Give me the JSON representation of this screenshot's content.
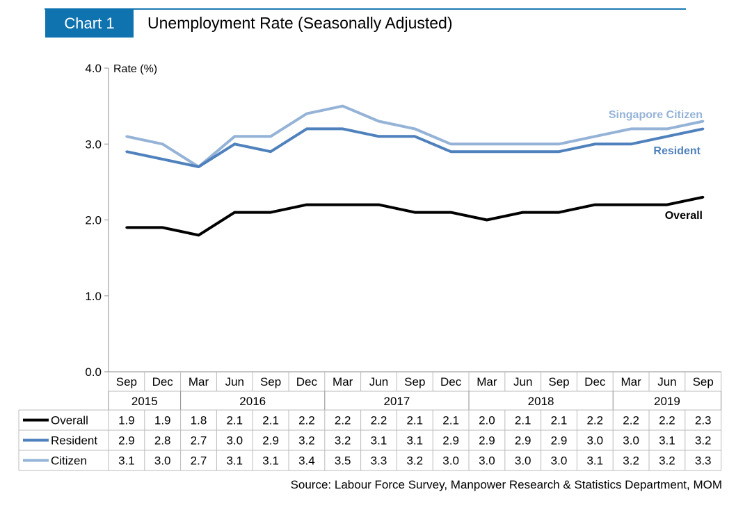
{
  "header": {
    "badge": "Chart 1",
    "title": "Unemployment Rate (Seasonally Adjusted)"
  },
  "source": "Source: Labour Force Survey, Manpower Research & Statistics Department, MOM",
  "colors": {
    "overall": "#000000",
    "resident": "#4f81bd",
    "citizen": "#95b3d7",
    "accent": "#0f73b0"
  },
  "chart_data": {
    "type": "line",
    "ylabel": "Rate (%)",
    "ylim": [
      0,
      4
    ],
    "yticks": [
      "0.0",
      "1.0",
      "2.0",
      "3.0",
      "4.0"
    ],
    "grid": false,
    "categories": [
      "Sep",
      "Dec",
      "Mar",
      "Jun",
      "Sep",
      "Dec",
      "Mar",
      "Jun",
      "Sep",
      "Dec",
      "Mar",
      "Jun",
      "Sep",
      "Dec",
      "Mar",
      "Jun",
      "Sep"
    ],
    "years": [
      {
        "label": "2015",
        "span": 2
      },
      {
        "label": "2016",
        "span": 4
      },
      {
        "label": "2017",
        "span": 4
      },
      {
        "label": "2018",
        "span": 4
      },
      {
        "label": "2019",
        "span": 3
      }
    ],
    "series": [
      {
        "key": "citizen",
        "name": "Citizen",
        "line_label": "Singapore Citizen",
        "color": "#95b3d7",
        "values": [
          3.1,
          3.0,
          2.7,
          3.1,
          3.1,
          3.4,
          3.5,
          3.3,
          3.2,
          3.0,
          3.0,
          3.0,
          3.0,
          3.1,
          3.2,
          3.2,
          3.3
        ]
      },
      {
        "key": "resident",
        "name": "Resident",
        "line_label": "Resident",
        "color": "#4f81bd",
        "values": [
          2.9,
          2.8,
          2.7,
          3.0,
          2.9,
          3.2,
          3.2,
          3.1,
          3.1,
          2.9,
          2.9,
          2.9,
          2.9,
          3.0,
          3.0,
          3.1,
          3.2
        ]
      },
      {
        "key": "overall",
        "name": "Overall",
        "line_label": "Overall",
        "color": "#000000",
        "values": [
          1.9,
          1.9,
          1.8,
          2.1,
          2.1,
          2.2,
          2.2,
          2.2,
          2.1,
          2.1,
          2.0,
          2.1,
          2.1,
          2.2,
          2.2,
          2.2,
          2.3
        ]
      }
    ],
    "table_order": [
      "overall",
      "resident",
      "citizen"
    ]
  }
}
